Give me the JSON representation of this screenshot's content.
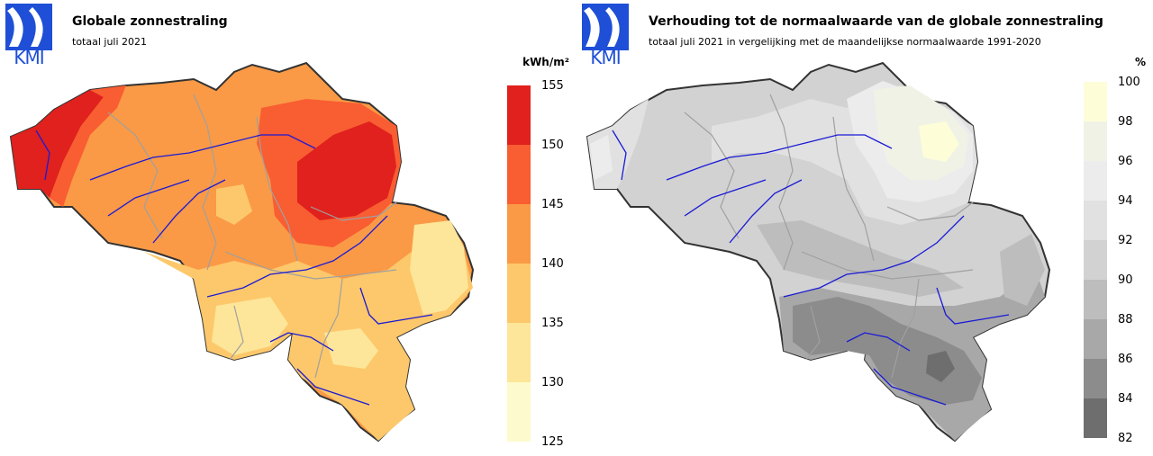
{
  "panels": [
    {
      "title": "Globale zonnestraling",
      "subtitle": "totaal juli 2021",
      "unit": "kWh/m²",
      "logo": "KMI",
      "legend": {
        "ticks": [
          "155",
          "150",
          "145",
          "140",
          "135",
          "130",
          "125"
        ],
        "colors": [
          "#e0211d",
          "#f95d32",
          "#fa9a46",
          "#fdc86b",
          "#fde699",
          "#fdfbcd"
        ]
      }
    },
    {
      "title": "Verhouding tot de normaalwaarde van de globale zonnestraling",
      "subtitle": "totaal juli 2021 in vergelijking met de maandelijkse normaalwaarde 1991-2020",
      "unit": "%",
      "logo": "KMI",
      "legend": {
        "ticks": [
          "100",
          "98",
          "96",
          "94",
          "92",
          "90",
          "88",
          "86",
          "84",
          "82"
        ],
        "colors": [
          "#fdfdd8",
          "#f1f2e6",
          "#ececec",
          "#e1e1e1",
          "#d2d2d2",
          "#bdbdbd",
          "#a8a8a8",
          "#8c8c8c",
          "#6e6e6e"
        ]
      }
    }
  ]
}
